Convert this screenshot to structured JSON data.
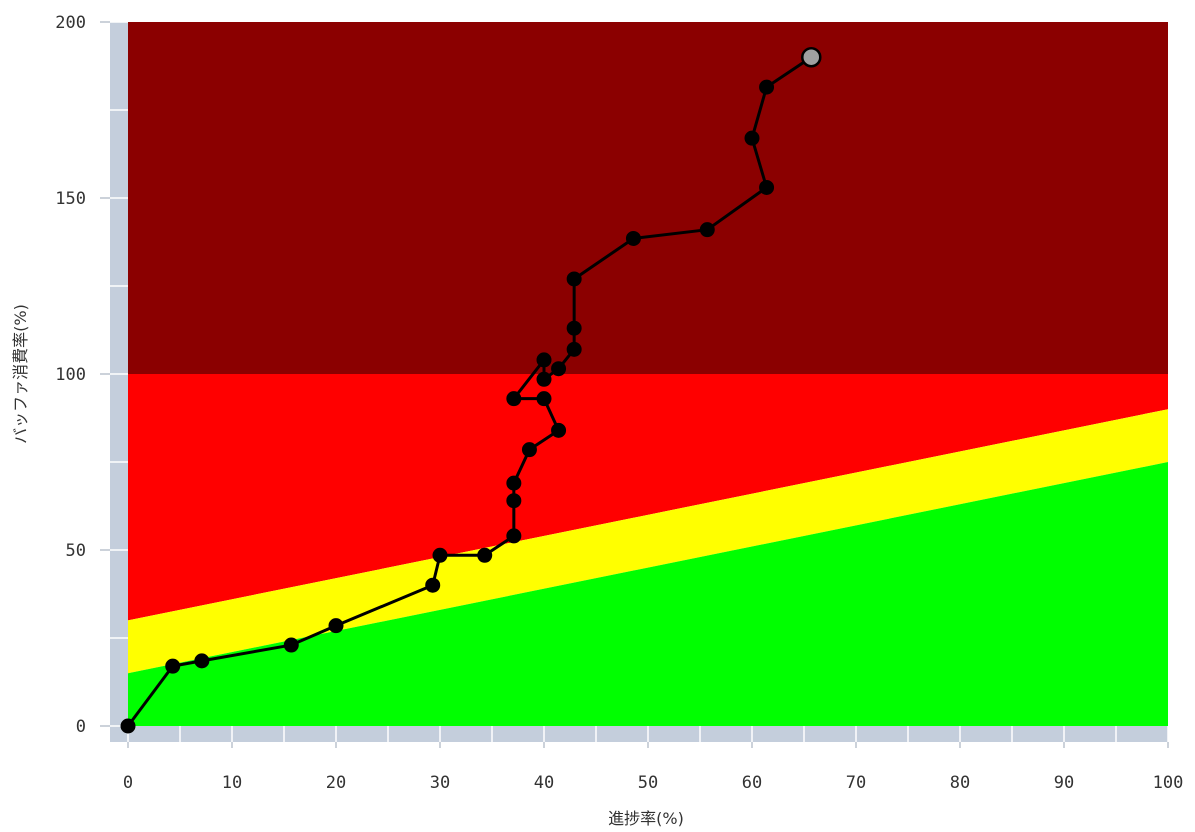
{
  "chart_data": {
    "type": "line",
    "title": "",
    "xlabel": "進捗率(%)",
    "ylabel": "バッファ消費率(%)",
    "xlim": [
      0,
      100
    ],
    "ylim": [
      0,
      200
    ],
    "x_ticks": [
      0,
      10,
      20,
      30,
      40,
      50,
      60,
      70,
      80,
      90,
      100
    ],
    "y_ticks": [
      0,
      50,
      100,
      150,
      200
    ],
    "grid": false,
    "legend": "none",
    "zones": [
      {
        "name": "critical",
        "color": "#8b0000",
        "polygon": [
          [
            0,
            100
          ],
          [
            100,
            100
          ],
          [
            100,
            200
          ],
          [
            0,
            200
          ]
        ]
      },
      {
        "name": "red",
        "color": "#ff0000",
        "polygon": [
          [
            0,
            30
          ],
          [
            100,
            90
          ],
          [
            100,
            100
          ],
          [
            0,
            100
          ]
        ]
      },
      {
        "name": "yellow",
        "color": "#ffff00",
        "polygon": [
          [
            0,
            15
          ],
          [
            100,
            75
          ],
          [
            100,
            90
          ],
          [
            0,
            30
          ]
        ]
      },
      {
        "name": "green",
        "color": "#00ff00",
        "polygon": [
          [
            0,
            0
          ],
          [
            100,
            0
          ],
          [
            100,
            75
          ],
          [
            0,
            15
          ]
        ]
      }
    ],
    "series": [
      {
        "color": "#000000",
        "points": [
          [
            0,
            0
          ],
          [
            4.3,
            17
          ],
          [
            7.1,
            18.5
          ],
          [
            15.7,
            23
          ],
          [
            20,
            28.5
          ],
          [
            29.3,
            40
          ],
          [
            30,
            48.5
          ],
          [
            34.3,
            48.5
          ],
          [
            37.1,
            54
          ],
          [
            37.1,
            64
          ],
          [
            37.1,
            69
          ],
          [
            38.6,
            78.5
          ],
          [
            41.4,
            84
          ],
          [
            40,
            93
          ],
          [
            37.1,
            93
          ],
          [
            40,
            104
          ],
          [
            40,
            98.5
          ],
          [
            41.4,
            101.5
          ],
          [
            42.9,
            107
          ],
          [
            42.9,
            113
          ],
          [
            42.9,
            127
          ],
          [
            48.6,
            138.5
          ],
          [
            55.7,
            141
          ],
          [
            61.4,
            153
          ],
          [
            60,
            167
          ],
          [
            61.4,
            181.5
          ],
          [
            65.7,
            190
          ]
        ],
        "last_point_color": "#a0a0a0"
      }
    ]
  },
  "colors": {
    "axis_band": "#c4cedc",
    "tick_line": "#ffffff",
    "line": "#000000",
    "marker": "#000000",
    "last_marker": "#a0a0a0"
  }
}
